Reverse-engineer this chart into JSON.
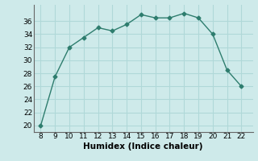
{
  "x": [
    8,
    9,
    10,
    11,
    12,
    13,
    14,
    15,
    16,
    17,
    18,
    19,
    20,
    21,
    22
  ],
  "y": [
    20,
    27.5,
    32,
    33.5,
    35,
    34.5,
    35.5,
    37,
    36.5,
    36.5,
    37.2,
    36.5,
    34,
    28.5,
    26
  ],
  "line_color": "#2e7d6e",
  "marker": "D",
  "marker_size": 2.5,
  "bg_color": "#ceeaea",
  "grid_color": "#b0d8d8",
  "xlabel": "Humidex (Indice chaleur)",
  "xlim": [
    7.5,
    22.8
  ],
  "ylim": [
    19,
    38.5
  ],
  "yticks": [
    20,
    22,
    24,
    26,
    28,
    30,
    32,
    34,
    36
  ],
  "xticks": [
    8,
    9,
    10,
    11,
    12,
    13,
    14,
    15,
    16,
    17,
    18,
    19,
    20,
    21,
    22
  ],
  "label_fontsize": 7.5,
  "tick_fontsize": 6.5
}
